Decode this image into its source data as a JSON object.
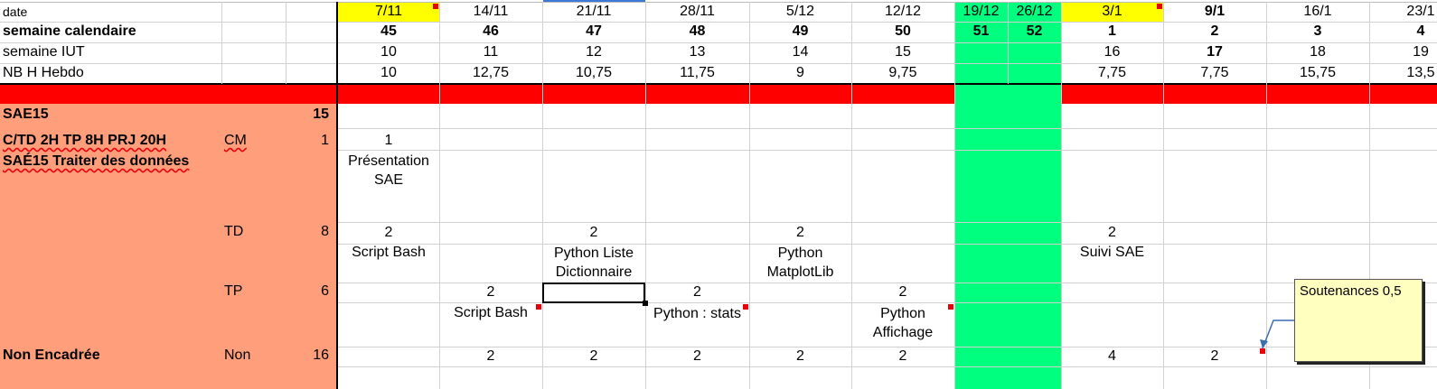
{
  "colors": {
    "highlight_yellow": "#ffff00",
    "holiday_green": "#00ff7f",
    "banner_red": "#ff0000",
    "module_salmon": "#ff9e7a",
    "comment_bg": "#ffffc0",
    "comment_marker": "#e8000b",
    "grid": "#d0d0d0"
  },
  "header": {
    "date_label": "date",
    "semaine_cal_label": "semaine calendaire",
    "semaine_iut_label": "semaine IUT",
    "nbh_label": "NB H Hebdo",
    "weeks": [
      {
        "date": "7/11",
        "cal": "45",
        "iut": "10",
        "nbh": "10"
      },
      {
        "date": "14/11",
        "cal": "46",
        "iut": "11",
        "nbh": "12,75"
      },
      {
        "date": "21/11",
        "cal": "47",
        "iut": "12",
        "nbh": "10,75"
      },
      {
        "date": "28/11",
        "cal": "48",
        "iut": "13",
        "nbh": "11,75"
      },
      {
        "date": "5/12",
        "cal": "49",
        "iut": "14",
        "nbh": "9"
      },
      {
        "date": "12/12",
        "cal": "50",
        "iut": "15",
        "nbh": "9,75"
      },
      {
        "date": "19/12",
        "cal": "51",
        "iut": "",
        "nbh": ""
      },
      {
        "date": "26/12",
        "cal": "52",
        "iut": "",
        "nbh": ""
      },
      {
        "date": "3/1",
        "cal": "1",
        "iut": "16",
        "nbh": "7,75"
      },
      {
        "date": "9/1",
        "cal": "2",
        "iut": "17",
        "nbh": "7,75"
      },
      {
        "date": "16/1",
        "cal": "3",
        "iut": "18",
        "nbh": "15,75"
      },
      {
        "date": "23/1",
        "cal": "4",
        "iut": "19",
        "nbh": "13,5"
      }
    ]
  },
  "module": {
    "code": "SAE15",
    "total": "15",
    "hours": "C/TD 2H TP 8H PRJ 20H",
    "title": "SAÉ15 Traiter des données",
    "rows": [
      {
        "type": "CM",
        "hours": "1"
      },
      {
        "type": "TD",
        "hours": "8"
      },
      {
        "type": "TP",
        "hours": "6"
      },
      {
        "type": "Non",
        "hours": "16",
        "label": "Non Encadrée"
      }
    ]
  },
  "cells": {
    "cm_7_11_hours": "1",
    "cm_7_11_text": "Présentation SAE",
    "td_7_11_hours": "2",
    "td_7_11_text": "Script Bash",
    "td_21_11_hours": "2",
    "td_21_11_text": "Python Liste Dictionnaire",
    "td_5_12_hours": "2",
    "td_5_12_text": "Python MatplotLib",
    "td_3_1_hours": "2",
    "td_3_1_text": "Suivi SAE",
    "tp_14_11_hours": "2",
    "tp_14_11_text": "Script Bash",
    "tp_28_11_hours": "2",
    "tp_28_11_text": "Python : stats",
    "tp_12_12_hours": "2",
    "tp_12_12_text": "Python Affichage",
    "ne_14_11": "2",
    "ne_21_11": "2",
    "ne_28_11": "2",
    "ne_5_12": "2",
    "ne_12_12": "2",
    "ne_3_1": "4",
    "ne_9_1": "2"
  },
  "comment": {
    "text": "Soutenances 0,5"
  }
}
